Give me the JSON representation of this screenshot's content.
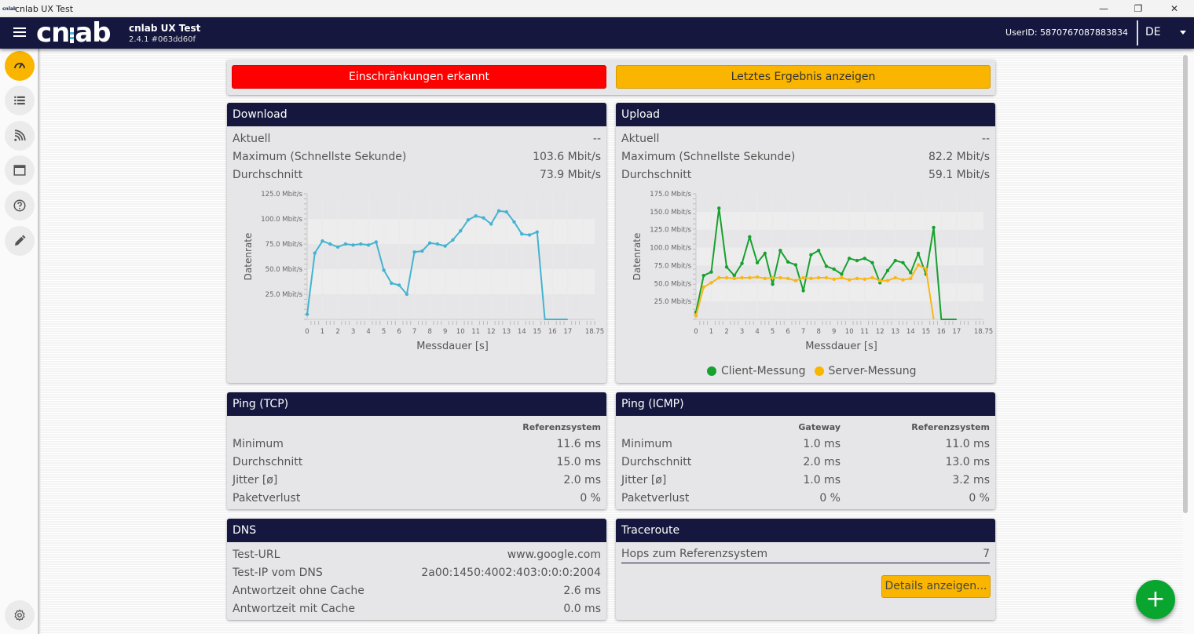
{
  "window": {
    "title": "cnlab UX Test",
    "icon_text": "cnlab",
    "controls": [
      "minimize-icon",
      "restore-icon",
      "close-icon"
    ]
  },
  "header": {
    "logo_text": "cnlab",
    "app_name": "cnlab UX Test",
    "version": "2.4.1 #063dd60f",
    "user_id": "UserID: 5870767087883834",
    "language": "DE"
  },
  "sidebar": {
    "items": [
      {
        "icon": "speedometer-icon",
        "active": true
      },
      {
        "icon": "list-icon",
        "active": false
      },
      {
        "icon": "wifi-signal-icon",
        "active": false
      },
      {
        "icon": "window-icon",
        "active": false
      },
      {
        "icon": "help-icon",
        "active": false
      },
      {
        "icon": "pencil-icon",
        "active": false
      }
    ],
    "settings_icon": "gear-icon"
  },
  "status": {
    "alert_label": "Einschränkungen erkannt",
    "last_result_label": "Letztes Ergebnis anzeigen",
    "alert_color": "#ff0000",
    "accent_color": "#f9b500"
  },
  "download": {
    "title": "Download",
    "rows": [
      {
        "label": "Aktuell",
        "value": "--"
      },
      {
        "label": "Maximum (Schnellste Sekunde)",
        "value": "103.6 Mbit/s"
      },
      {
        "label": "Durchschnitt",
        "value": "73.9 Mbit/s"
      }
    ]
  },
  "upload": {
    "title": "Upload",
    "rows": [
      {
        "label": "Aktuell",
        "value": "--"
      },
      {
        "label": "Maximum (Schnellste Sekunde)",
        "value": "82.2 Mbit/s"
      },
      {
        "label": "Durchschnitt",
        "value": "59.1 Mbit/s"
      }
    ]
  },
  "chart_data": [
    {
      "type": "line",
      "title": "Download",
      "xlabel": "Messdauer [s]",
      "ylabel": "Datenrate",
      "xlim": [
        0,
        18.75
      ],
      "ylim": [
        0,
        125
      ],
      "x_ticks": [
        "0",
        "1",
        "2",
        "3",
        "4",
        "5",
        "6",
        "7",
        "8",
        "9",
        "10",
        "11",
        "12",
        "13",
        "14",
        "15",
        "16",
        "17",
        "18.75"
      ],
      "y_ticks": [
        "25.0 Mbit/s",
        "50.0 Mbit/s",
        "75.0 Mbit/s",
        "100.0 Mbit/s",
        "125.0 Mbit/s"
      ],
      "y_tick_values": [
        25,
        50,
        75,
        100,
        125
      ],
      "series": [
        {
          "name": "Download",
          "color": "#45b3d0",
          "x": [
            0,
            0.5,
            1,
            1.5,
            2,
            2.5,
            3,
            3.5,
            4,
            4.5,
            5,
            5.5,
            6,
            6.5,
            7,
            7.5,
            8,
            8.5,
            9,
            9.5,
            10,
            10.5,
            11,
            11.5,
            12,
            12.5,
            13,
            13.5,
            14,
            14.5,
            15,
            15.5,
            16,
            16.5,
            17
          ],
          "values": [
            5,
            66,
            78,
            75,
            72,
            75,
            74,
            75,
            74,
            77,
            49,
            36,
            34,
            25,
            67,
            68,
            76,
            75,
            73,
            79,
            88,
            99,
            103,
            101,
            95,
            108,
            107,
            97,
            85,
            84,
            87,
            0,
            0,
            0,
            0
          ]
        }
      ]
    },
    {
      "type": "line",
      "title": "Upload",
      "xlabel": "Messdauer [s]",
      "ylabel": "Datenrate",
      "xlim": [
        0,
        18.75
      ],
      "ylim": [
        0,
        175
      ],
      "x_ticks": [
        "0",
        "1",
        "2",
        "3",
        "4",
        "5",
        "6",
        "7",
        "8",
        "9",
        "10",
        "11",
        "12",
        "13",
        "14",
        "15",
        "16",
        "17",
        "18.75"
      ],
      "y_ticks": [
        "25.0 Mbit/s",
        "50.0 Mbit/s",
        "75.0 Mbit/s",
        "100.0 Mbit/s",
        "125.0 Mbit/s",
        "150.0 Mbit/s",
        "175.0 Mbit/s"
      ],
      "y_tick_values": [
        25,
        50,
        75,
        100,
        125,
        150,
        175
      ],
      "legend": "bottom",
      "series": [
        {
          "name": "Client-Messung",
          "color": "#17a12e",
          "x": [
            0,
            0.5,
            1,
            1.5,
            2,
            2.5,
            3,
            3.5,
            4,
            4.5,
            5,
            5.5,
            6,
            6.5,
            7,
            7.5,
            8,
            8.5,
            9,
            9.5,
            10,
            10.5,
            11,
            11.5,
            12,
            12.5,
            13,
            13.5,
            14,
            14.5,
            15,
            15.5,
            16,
            16.5,
            17
          ],
          "values": [
            10,
            61,
            66,
            155,
            73,
            61,
            78,
            115,
            79,
            92,
            49,
            96,
            80,
            76,
            40,
            90,
            96,
            74,
            70,
            63,
            85,
            82,
            85,
            79,
            51,
            68,
            82,
            79,
            65,
            92,
            63,
            128,
            0,
            0,
            0
          ]
        },
        {
          "name": "Server-Messung",
          "color": "#f7b718",
          "x": [
            0,
            0.5,
            1,
            1.5,
            2,
            2.5,
            3,
            3.5,
            4,
            4.5,
            5,
            5.5,
            6,
            6.5,
            7,
            7.5,
            8,
            8.5,
            9,
            9.5,
            10,
            10.5,
            11,
            11.5,
            12,
            12.5,
            13,
            13.5,
            14,
            14.5,
            15,
            15.5
          ],
          "values": [
            5,
            45,
            51,
            58,
            58,
            57,
            58,
            58,
            59,
            57,
            58,
            58,
            57,
            54,
            58,
            57,
            58,
            58,
            56,
            58,
            55,
            57,
            56,
            58,
            54,
            54,
            58,
            55,
            57,
            76,
            70,
            0
          ]
        }
      ]
    }
  ],
  "ping_tcp": {
    "title": "Ping (TCP)",
    "col_ref": "Referenzsystem",
    "rows": [
      {
        "label": "Minimum",
        "ref": "11.6 ms"
      },
      {
        "label": "Durchschnitt",
        "ref": "15.0 ms"
      },
      {
        "label": "Jitter [ø]",
        "ref": "2.0 ms"
      },
      {
        "label": "Paketverlust",
        "ref": "0 %"
      }
    ]
  },
  "ping_icmp": {
    "title": "Ping (ICMP)",
    "col_gateway": "Gateway",
    "col_ref": "Referenzsystem",
    "rows": [
      {
        "label": "Minimum",
        "gateway": "1.0 ms",
        "ref": "11.0 ms"
      },
      {
        "label": "Durchschnitt",
        "gateway": "2.0 ms",
        "ref": "13.0 ms"
      },
      {
        "label": "Jitter [ø]",
        "gateway": "1.0 ms",
        "ref": "3.2 ms"
      },
      {
        "label": "Paketverlust",
        "gateway": "0 %",
        "ref": "0 %"
      }
    ]
  },
  "dns": {
    "title": "DNS",
    "rows": [
      {
        "label": "Test-URL",
        "value": "www.google.com"
      },
      {
        "label": "Test-IP vom DNS",
        "value": "2a00:1450:4002:403:0:0:0:2004"
      },
      {
        "label": "Antwortzeit ohne Cache",
        "value": "2.6 ms"
      },
      {
        "label": "Antwortzeit mit Cache",
        "value": "0.0 ms"
      }
    ]
  },
  "traceroute": {
    "title": "Traceroute",
    "hops_label": "Hops zum Referenzsystem",
    "hops_value": "7",
    "details_label": "Details anzeigen..."
  },
  "fab": {
    "icon": "plus-icon",
    "label": "+"
  }
}
